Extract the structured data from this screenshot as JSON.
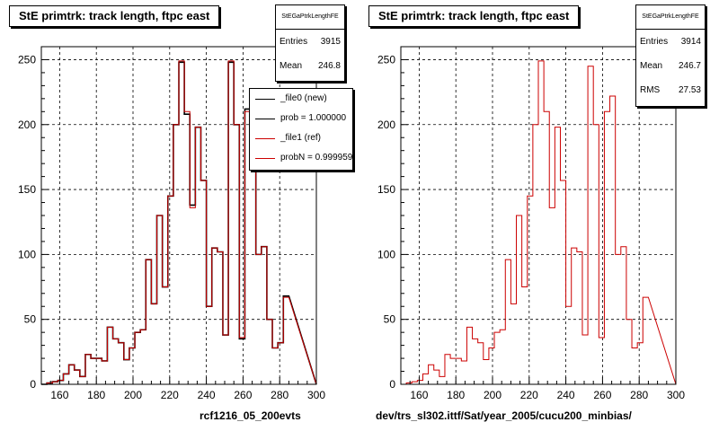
{
  "colors": {
    "new": "#000000",
    "ref": "#cc0000",
    "grid": "#000000",
    "frame": "#000000"
  },
  "chart_data": [
    {
      "type": "histogram",
      "title": "StE primtrk: track length, ftpc east",
      "xlabel": "rcf1216_05_200evts",
      "xlim": [
        150,
        300
      ],
      "ylim": [
        0,
        260
      ],
      "xticks": [
        160,
        180,
        200,
        220,
        240,
        260,
        280,
        300
      ],
      "yticks": [
        0,
        50,
        100,
        150,
        200,
        250
      ],
      "grid": true,
      "bin_edges_start": 150,
      "bin_width": 3,
      "series": [
        {
          "name": "_file0 (new)",
          "color": "#000000",
          "values": [
            0,
            1,
            2,
            3,
            8,
            15,
            11,
            6,
            23,
            20,
            20,
            18,
            44,
            35,
            32,
            19,
            28,
            40,
            42,
            96,
            62,
            130,
            75,
            145,
            200,
            248,
            208,
            138,
            198,
            157,
            60,
            105,
            102,
            38,
            248,
            200,
            35,
            212,
            220,
            100,
            106,
            50,
            28,
            32,
            68
          ]
        },
        {
          "name": "_file1 (ref)",
          "color": "#cc0000",
          "values": [
            0,
            1,
            2,
            3,
            8,
            15,
            11,
            6,
            23,
            20,
            20,
            18,
            44,
            35,
            32,
            19,
            28,
            40,
            42,
            96,
            62,
            130,
            75,
            145,
            200,
            249,
            210,
            136,
            198,
            157,
            60,
            105,
            102,
            38,
            249,
            200,
            36,
            210,
            222,
            100,
            106,
            50,
            28,
            32,
            67
          ]
        }
      ],
      "stats": {
        "header": "StEGaPtrkLengthFE",
        "entries_label": "Entries",
        "entries": "3915",
        "mean_label": "Mean",
        "mean": "246.8"
      },
      "legend": [
        {
          "label": "_file0 (new)",
          "color": "#000000"
        },
        {
          "label": "prob = 1.000000",
          "color": "#000000"
        },
        {
          "label": "_file1 (ref)",
          "color": "#cc0000"
        },
        {
          "label": "probN = 0.999959",
          "color": "#cc0000"
        }
      ]
    },
    {
      "type": "histogram",
      "title": "StE primtrk: track length, ftpc east",
      "xlabel": "dev/trs_sl302.ittf/Sat/year_2005/cucu200_minbias/",
      "xlim": [
        150,
        300
      ],
      "ylim": [
        0,
        260
      ],
      "xticks": [
        160,
        180,
        200,
        220,
        240,
        260,
        280,
        300
      ],
      "yticks": [
        0,
        50,
        100,
        150,
        200,
        250
      ],
      "grid": true,
      "bin_edges_start": 150,
      "bin_width": 3,
      "series": [
        {
          "name": "ref",
          "color": "#cc0000",
          "values": [
            0,
            1,
            2,
            3,
            8,
            15,
            11,
            6,
            23,
            20,
            20,
            18,
            44,
            35,
            32,
            19,
            28,
            40,
            42,
            96,
            62,
            130,
            75,
            145,
            200,
            249,
            210,
            136,
            198,
            157,
            60,
            105,
            102,
            38,
            245,
            200,
            36,
            210,
            222,
            100,
            106,
            50,
            28,
            32,
            67
          ]
        }
      ],
      "stats": {
        "header": "StEGaPtrkLengthFE",
        "entries_label": "Entries",
        "entries": "3914",
        "mean_label": "Mean",
        "mean": "246.7",
        "rms_label": "RMS",
        "rms": "27.53"
      }
    }
  ]
}
